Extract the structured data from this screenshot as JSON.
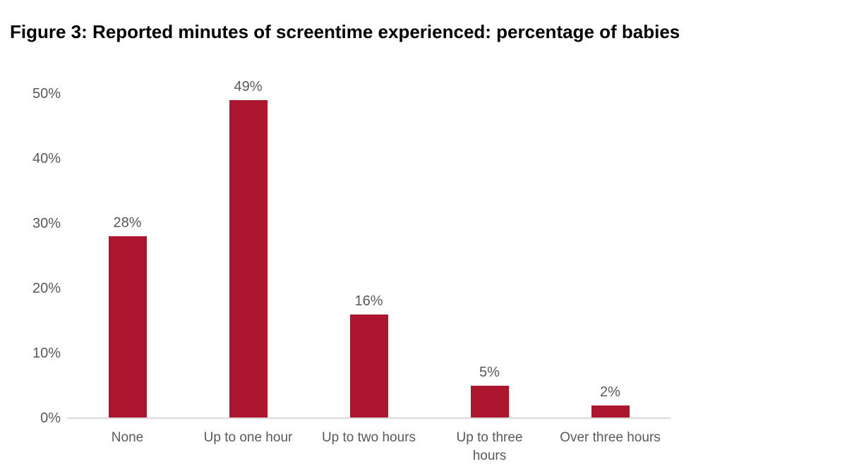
{
  "chart_data": {
    "type": "bar",
    "title": "Figure 3: Reported minutes of screentime experienced: percentage of babies",
    "categories": [
      "None",
      "Up to one hour",
      "Up to two hours",
      "Up to three\nhours",
      "Over three hours"
    ],
    "values": [
      28,
      49,
      16,
      5,
      2
    ],
    "value_labels": [
      "28%",
      "49%",
      "16%",
      "5%",
      "2%"
    ],
    "ytick_labels": [
      "0%",
      "10%",
      "20%",
      "30%",
      "40%",
      "50%"
    ],
    "ytick_values": [
      0,
      10,
      20,
      30,
      40,
      50
    ],
    "ylim": [
      0,
      50
    ],
    "xlabel": "",
    "ylabel": "",
    "grid": false,
    "legend": "none",
    "bar_color": "#AC162F",
    "axis_line_color": "#D9D9D9",
    "tick_label_color": "#595959",
    "value_label_color": "#595959",
    "title_color": "#000000",
    "background_color": "#FFFFFF"
  }
}
